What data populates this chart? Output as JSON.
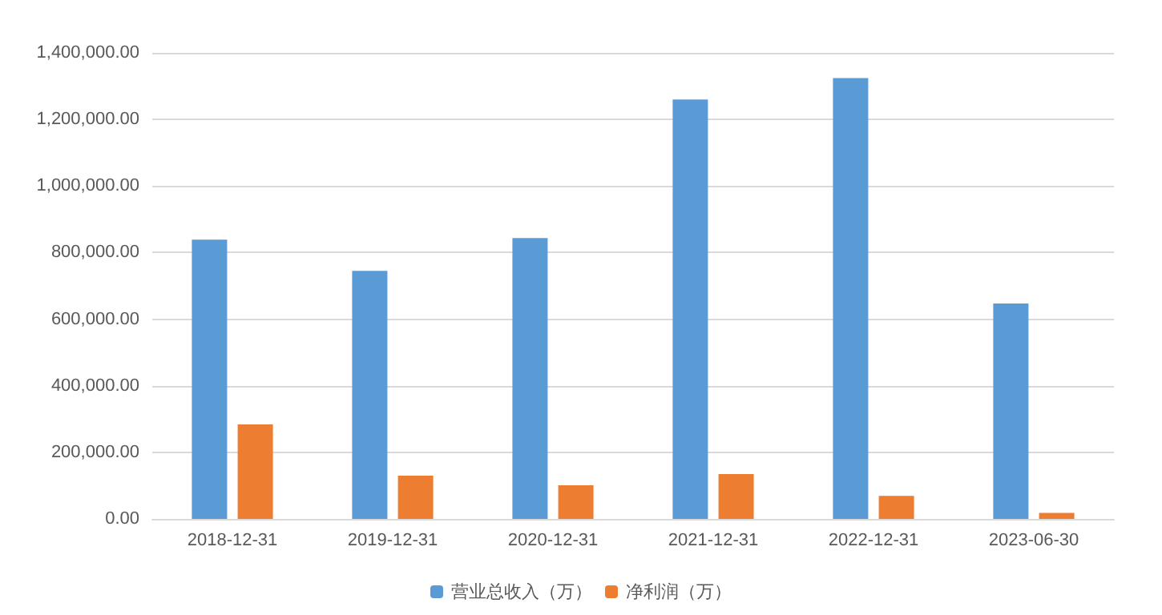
{
  "chart_data": {
    "type": "bar",
    "categories": [
      "2018-12-31",
      "2019-12-31",
      "2020-12-31",
      "2021-12-31",
      "2022-12-31",
      "2023-06-30"
    ],
    "series": [
      {
        "name": "营业总收入（万）",
        "color": "#5b9bd5",
        "values": [
          839000,
          745000,
          844000,
          1260000,
          1324000,
          647000
        ]
      },
      {
        "name": "净利润（万）",
        "color": "#ed7d31",
        "values": [
          284000,
          130000,
          101000,
          135000,
          69000,
          18000
        ]
      }
    ],
    "ylim": [
      0,
      1400000
    ],
    "yticks": [
      {
        "value": 0,
        "label": "0.00"
      },
      {
        "value": 200000,
        "label": "200,000.00"
      },
      {
        "value": 400000,
        "label": "400,000.00"
      },
      {
        "value": 600000,
        "label": "600,000.00"
      },
      {
        "value": 800000,
        "label": "800,000.00"
      },
      {
        "value": 1000000,
        "label": "1,000,000.00"
      },
      {
        "value": 1200000,
        "label": "1,200,000.00"
      },
      {
        "value": 1400000,
        "label": "1,400,000.00"
      }
    ],
    "grid": "y",
    "legend": "bottom"
  }
}
